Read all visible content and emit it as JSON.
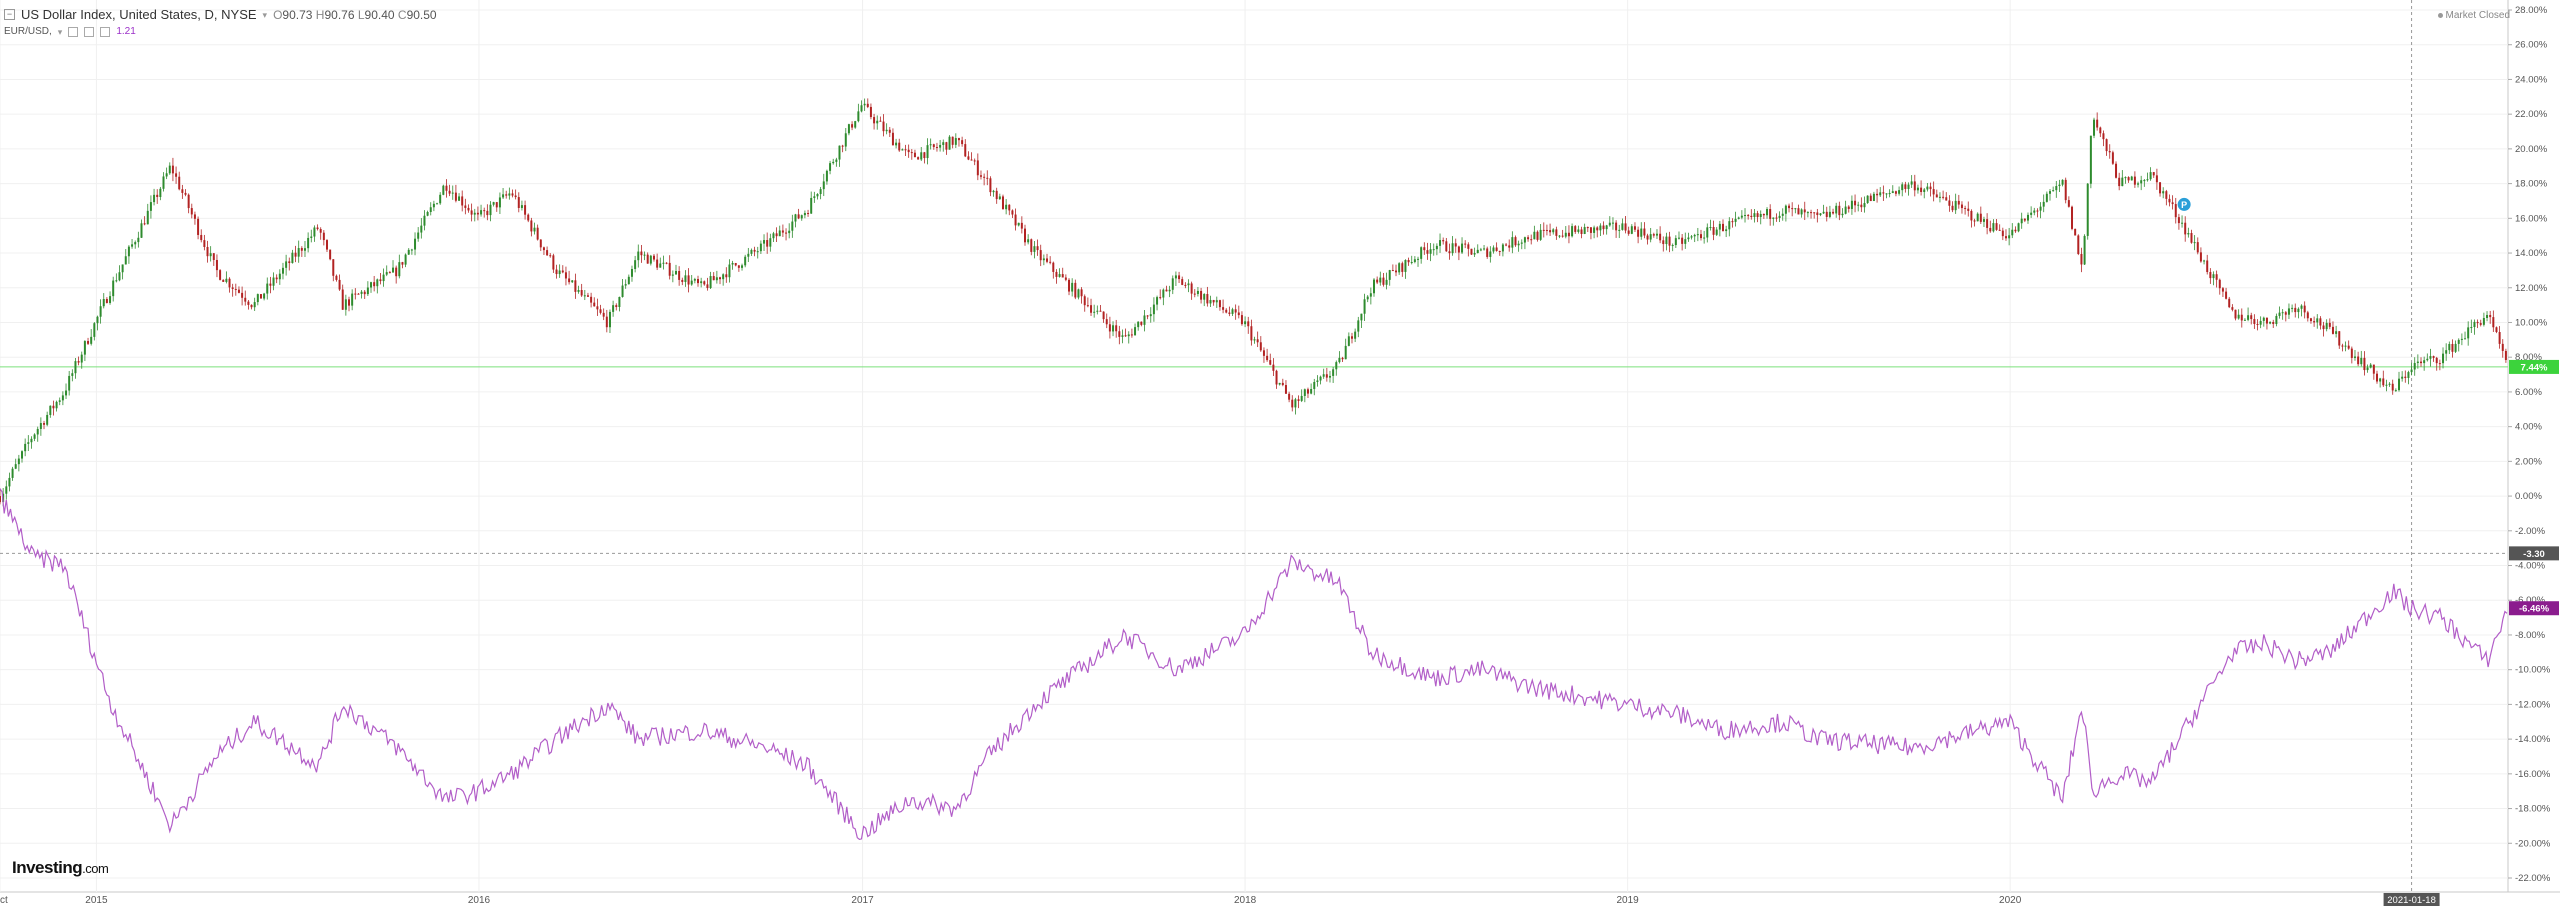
{
  "header": {
    "title": "US Dollar Index, United States, D, NYSE",
    "ohlc": [
      {
        "label": "O",
        "value": "90.73"
      },
      {
        "label": "H",
        "value": "90.76"
      },
      {
        "label": "L",
        "value": "90.40"
      },
      {
        "label": "C",
        "value": "90.50"
      }
    ],
    "compare_symbol": "EUR/USD,",
    "compare_value": "1.21"
  },
  "status": {
    "market": "Market Closed"
  },
  "branding": {
    "logo_main": "Investing",
    "logo_suffix": ".com"
  },
  "crosshair": {
    "price_label": "-3.30",
    "date_label": "2021-01-18",
    "price_value": -3.3,
    "date_x": "2021-01-18"
  },
  "colors": {
    "up": "#2e8b2e",
    "down": "#b22222",
    "compare": "#b25ec8",
    "last_dxy": "#3cd33c",
    "last_eur": "#8b1c8e",
    "crosshair": "#555555"
  },
  "chart_data": {
    "type": "line",
    "yunit": "%",
    "ylim": [
      -22,
      28
    ],
    "yticks": [
      28,
      26,
      24,
      22,
      20,
      18,
      16,
      14,
      12,
      10,
      8,
      6,
      4,
      2,
      0,
      -2,
      -4,
      -6,
      -8,
      -10,
      -12,
      -14,
      -16,
      -18,
      -20,
      -22
    ],
    "ytick_labels": [
      "28.00%",
      "26.00%",
      "24.00%",
      "22.00%",
      "20.00%",
      "18.00%",
      "16.00%",
      "14.00%",
      "12.00%",
      "10.00%",
      "8.00%",
      "6.00%",
      "4.00%",
      "2.00%",
      "0.00%",
      "-2.00%",
      "-4.00%",
      "-6.00%",
      "-8.00%",
      "-10.00%",
      "-12.00%",
      "-14.00%",
      "-16.00%",
      "-18.00%",
      "-20.00%",
      "-22.00%"
    ],
    "xlim": [
      "2014-10-01",
      "2021-04-20"
    ],
    "xticks": [
      {
        "date": "2014-10-01",
        "label": "Oct"
      },
      {
        "date": "2015-01-01",
        "label": "2015"
      },
      {
        "date": "2016-01-01",
        "label": "2016"
      },
      {
        "date": "2017-01-01",
        "label": "2017"
      },
      {
        "date": "2018-01-01",
        "label": "2018"
      },
      {
        "date": "2019-01-01",
        "label": "2019"
      },
      {
        "date": "2020-01-01",
        "label": "2020"
      }
    ],
    "grid": true,
    "series": [
      {
        "style": "candlestick",
        "last_value_label": "7.44%",
        "last_value": 7.44,
        "points": [
          [
            "2014-10-01",
            0.0
          ],
          [
            "2014-11-01",
            3.5
          ],
          [
            "2014-12-01",
            6.0
          ],
          [
            "2015-01-15",
            12.0
          ],
          [
            "2015-03-13",
            19.0
          ],
          [
            "2015-04-25",
            13.0
          ],
          [
            "2015-05-31",
            11.0
          ],
          [
            "2015-08-01",
            15.5
          ],
          [
            "2015-08-24",
            11.0
          ],
          [
            "2015-10-15",
            13.0
          ],
          [
            "2015-11-30",
            18.0
          ],
          [
            "2015-12-31",
            16.0
          ],
          [
            "2016-02-01",
            17.5
          ],
          [
            "2016-03-15",
            13.0
          ],
          [
            "2016-05-03",
            10.0
          ],
          [
            "2016-06-01",
            14.0
          ],
          [
            "2016-08-01",
            12.0
          ],
          [
            "2016-10-01",
            14.5
          ],
          [
            "2016-11-09",
            16.5
          ],
          [
            "2016-12-31",
            22.5
          ],
          [
            "2017-02-15",
            19.5
          ],
          [
            "2017-03-31",
            20.5
          ],
          [
            "2017-05-01",
            18.0
          ],
          [
            "2017-06-15",
            14.0
          ],
          [
            "2017-09-08",
            9.0
          ],
          [
            "2017-10-27",
            12.5
          ],
          [
            "2017-12-31",
            10.0
          ],
          [
            "2018-02-15",
            5.2
          ],
          [
            "2018-03-31",
            7.5
          ],
          [
            "2018-05-01",
            12.0
          ],
          [
            "2018-06-30",
            14.5
          ],
          [
            "2018-08-15",
            14.0
          ],
          [
            "2018-10-01",
            15.0
          ],
          [
            "2018-12-31",
            15.5
          ],
          [
            "2019-02-15",
            14.5
          ],
          [
            "2019-04-01",
            15.5
          ],
          [
            "2019-05-31",
            16.5
          ],
          [
            "2019-07-01",
            16.0
          ],
          [
            "2019-09-30",
            18.0
          ],
          [
            "2019-12-31",
            15.0
          ],
          [
            "2020-02-20",
            18.0
          ],
          [
            "2020-03-10",
            13.0
          ],
          [
            "2020-03-19",
            22.0
          ],
          [
            "2020-04-15",
            18.0
          ],
          [
            "2020-05-15",
            18.5
          ],
          [
            "2020-06-15",
            15.5
          ],
          [
            "2020-07-31",
            10.5
          ],
          [
            "2020-08-31",
            10.0
          ],
          [
            "2020-10-01",
            11.0
          ],
          [
            "2020-11-01",
            9.5
          ],
          [
            "2020-12-31",
            6.0
          ],
          [
            "2021-01-18",
            7.5
          ],
          [
            "2021-02-15",
            8.0
          ],
          [
            "2021-03-31",
            10.5
          ],
          [
            "2021-04-20",
            7.4
          ]
        ]
      },
      {
        "style": "line",
        "last_value_label": "-6.46%",
        "last_value": -6.46,
        "points": [
          [
            "2014-10-01",
            0.0
          ],
          [
            "2014-11-01",
            -3.5
          ],
          [
            "2014-12-01",
            -4.0
          ],
          [
            "2015-01-15",
            -12.0
          ],
          [
            "2015-03-13",
            -19.0
          ],
          [
            "2015-04-25",
            -15.0
          ],
          [
            "2015-05-31",
            -13.0
          ],
          [
            "2015-08-01",
            -15.5
          ],
          [
            "2015-08-24",
            -12.0
          ],
          [
            "2015-10-15",
            -14.5
          ],
          [
            "2015-11-30",
            -17.5
          ],
          [
            "2015-12-31",
            -17.0
          ],
          [
            "2016-02-01",
            -16.0
          ],
          [
            "2016-03-15",
            -14.0
          ],
          [
            "2016-05-03",
            -12.0
          ],
          [
            "2016-06-01",
            -14.0
          ],
          [
            "2016-08-01",
            -13.5
          ],
          [
            "2016-10-01",
            -14.5
          ],
          [
            "2016-11-09",
            -15.5
          ],
          [
            "2016-12-31",
            -19.5
          ],
          [
            "2017-02-15",
            -17.5
          ],
          [
            "2017-03-31",
            -18.0
          ],
          [
            "2017-05-01",
            -15.0
          ],
          [
            "2017-06-15",
            -12.0
          ],
          [
            "2017-09-08",
            -8.0
          ],
          [
            "2017-10-27",
            -10.0
          ],
          [
            "2017-12-31",
            -8.0
          ],
          [
            "2018-02-15",
            -3.8
          ],
          [
            "2018-03-31",
            -5.0
          ],
          [
            "2018-05-01",
            -9.0
          ],
          [
            "2018-06-30",
            -10.5
          ],
          [
            "2018-08-15",
            -10.0
          ],
          [
            "2018-10-01",
            -11.0
          ],
          [
            "2018-12-31",
            -12.0
          ],
          [
            "2019-02-15",
            -12.5
          ],
          [
            "2019-04-01",
            -13.5
          ],
          [
            "2019-05-31",
            -13.0
          ],
          [
            "2019-07-01",
            -14.0
          ],
          [
            "2019-09-30",
            -14.5
          ],
          [
            "2019-12-31",
            -13.0
          ],
          [
            "2020-02-20",
            -17.5
          ],
          [
            "2020-03-10",
            -12.0
          ],
          [
            "2020-03-19",
            -17.0
          ],
          [
            "2020-04-15",
            -16.0
          ],
          [
            "2020-05-15",
            -16.5
          ],
          [
            "2020-06-15",
            -13.5
          ],
          [
            "2020-07-31",
            -9.0
          ],
          [
            "2020-08-31",
            -8.5
          ],
          [
            "2020-10-01",
            -9.5
          ],
          [
            "2020-11-01",
            -9.0
          ],
          [
            "2020-12-31",
            -5.5
          ],
          [
            "2021-01-18",
            -6.5
          ],
          [
            "2021-02-15",
            -7.0
          ],
          [
            "2021-03-31",
            -9.5
          ],
          [
            "2021-04-20",
            -6.46
          ]
        ]
      }
    ],
    "reference_lines": [
      {
        "axis": "y",
        "value": 7.44
      },
      {
        "axis": "y",
        "value": -3.3,
        "style": "dashed"
      },
      {
        "axis": "x",
        "value": "2021-01-18",
        "style": "dashed"
      }
    ],
    "annotations": [
      {
        "date": "2020-06-15",
        "value": 16.8,
        "label": "P"
      }
    ]
  }
}
